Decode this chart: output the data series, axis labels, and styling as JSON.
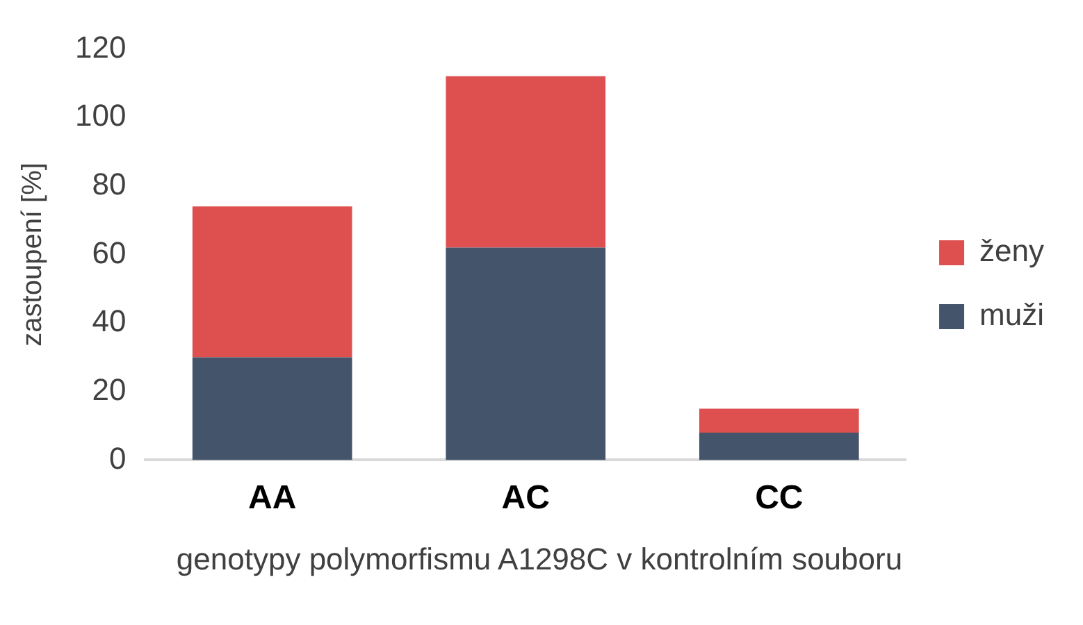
{
  "chart_data": {
    "type": "bar",
    "stacked": true,
    "ylabel": "zastoupení [%]",
    "xlabel": "genotypy polymorfismu A1298C v kontrolním souboru",
    "categories": [
      "AA",
      "AC",
      "CC"
    ],
    "series": [
      {
        "name": "muži",
        "color": "#44546a",
        "values": [
          30,
          62,
          8
        ]
      },
      {
        "name": "ženy",
        "color": "#de5050",
        "values": [
          44,
          50,
          7
        ]
      }
    ],
    "ylim": [
      0,
      120
    ],
    "yticks": [
      0,
      20,
      40,
      60,
      80,
      100,
      120
    ],
    "grid": false,
    "legend": "right"
  }
}
